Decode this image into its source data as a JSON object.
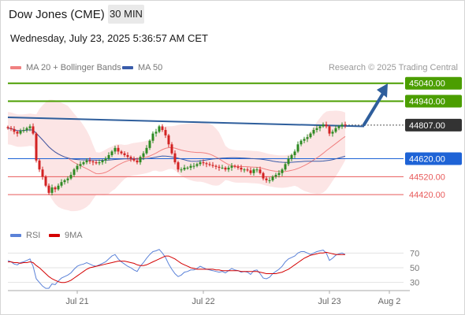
{
  "header": {
    "title": "Dow Jones (CME)",
    "interval": "30 MIN"
  },
  "datetime": "Wednesday, July 23, 2025 5:36:57 AM CET",
  "legend": {
    "ma20": "MA 20 + Bollinger Bands",
    "ma50": "MA 50",
    "credit": "Research © 2025 Trading Central"
  },
  "rsi_legend": {
    "rsi": "RSI",
    "ma9": "9MA"
  },
  "colors": {
    "resistance": "#4b9e00",
    "pivot": "#1e63d6",
    "support": "#e85a5a",
    "last": "#333333",
    "trendline": "#2e5e9c",
    "bollinger": "#fce0e0",
    "ma20": "#f08080",
    "ma50": "#3a5caa",
    "candle_up": "#2e8a22",
    "candle_down": "#d22222",
    "rsi": "#5b82d8",
    "rsi_ma": "#d40000"
  },
  "chart_data": [
    {
      "type": "candlestick",
      "title": "Dow Jones (CME)",
      "ylim": [
        44320,
        45100
      ],
      "x_labels": [
        {
          "label": "Jul 21",
          "bar": 22
        },
        {
          "label": "Jul 22",
          "bar": 62
        },
        {
          "label": "Jul 23",
          "bar": 102
        },
        {
          "label": "Aug 2",
          "bar": 121
        }
      ],
      "levels": [
        {
          "label": "45040.00",
          "value": 45040,
          "kind": "resistance"
        },
        {
          "label": "44940.00",
          "value": 44940,
          "kind": "resistance"
        },
        {
          "label": "44807.00",
          "value": 44807,
          "kind": "last"
        },
        {
          "label": "44620.00",
          "value": 44620,
          "kind": "pivot"
        },
        {
          "label": "44520.00",
          "value": 44520,
          "kind": "support"
        },
        {
          "label": "44420.00",
          "value": 44420,
          "kind": "support"
        }
      ],
      "trendline": {
        "from": {
          "bar": 0,
          "value": 44850
        },
        "to": {
          "bar": 113,
          "value": 44800
        }
      },
      "projection": {
        "from": {
          "bar": 113,
          "value": 44810
        },
        "to": {
          "bar": 120,
          "value": 45030
        }
      },
      "close": [
        44790,
        44785,
        44770,
        44760,
        44775,
        44780,
        44790,
        44800,
        44760,
        44610,
        44560,
        44520,
        44470,
        44430,
        44460,
        44450,
        44470,
        44490,
        44500,
        44510,
        44530,
        44560,
        44580,
        44590,
        44600,
        44610,
        44605,
        44600,
        44595,
        44600,
        44610,
        44620,
        44640,
        44660,
        44680,
        44660,
        44650,
        44640,
        44630,
        44620,
        44610,
        44600,
        44630,
        44650,
        44680,
        44720,
        44760,
        44770,
        44800,
        44780,
        44750,
        44700,
        44650,
        44600,
        44560,
        44560,
        44570,
        44570,
        44580,
        44580,
        44590,
        44600,
        44595,
        44590,
        44585,
        44580,
        44575,
        44570,
        44570,
        44560,
        44570,
        44580,
        44575,
        44570,
        44560,
        44560,
        44555,
        44540,
        44560,
        44560,
        44540,
        44510,
        44500,
        44500,
        44520,
        44530,
        44540,
        44560,
        44590,
        44620,
        44640,
        44660,
        44700,
        44720,
        44730,
        44740,
        44760,
        44780,
        44790,
        44800,
        44810,
        44800,
        44760,
        44770,
        44790,
        44800,
        44810,
        44807
      ]
    },
    {
      "type": "line",
      "title": "RSI",
      "ylim": [
        20,
        80
      ],
      "yticks": [
        30,
        50,
        70
      ],
      "series": [
        {
          "name": "RSI",
          "values": [
            60,
            58,
            55,
            54,
            57,
            58,
            60,
            62,
            52,
            35,
            30,
            25,
            22,
            22,
            28,
            27,
            32,
            36,
            38,
            40,
            43,
            48,
            52,
            54,
            55,
            57,
            55,
            53,
            52,
            54,
            56,
            58,
            62,
            66,
            68,
            62,
            58,
            55,
            52,
            50,
            47,
            45,
            52,
            57,
            63,
            68,
            72,
            73,
            75,
            70,
            64,
            55,
            48,
            42,
            38,
            40,
            44,
            45,
            47,
            47,
            49,
            52,
            50,
            48,
            47,
            46,
            45,
            44,
            45,
            43,
            46,
            49,
            47,
            46,
            44,
            45,
            44,
            41,
            46,
            47,
            42,
            36,
            35,
            37,
            42,
            45,
            48,
            52,
            58,
            62,
            64,
            66,
            70,
            72,
            72,
            70,
            68,
            70,
            72,
            73,
            74,
            70,
            60,
            63,
            67,
            69,
            70,
            68
          ]
        },
        {
          "name": "9MA",
          "values": [
            58,
            58,
            57,
            57,
            56,
            57,
            57,
            58,
            57,
            53,
            50,
            46,
            42,
            38,
            35,
            33,
            31,
            30,
            30,
            31,
            33,
            36,
            39,
            42,
            45,
            48,
            50,
            51,
            52,
            53,
            54,
            55,
            56,
            57,
            58,
            59,
            59,
            59,
            58,
            57,
            56,
            54,
            53,
            53,
            54,
            56,
            58,
            60,
            62,
            64,
            66,
            66,
            64,
            62,
            59,
            56,
            54,
            52,
            50,
            49,
            48,
            48,
            48,
            48,
            48,
            48,
            47,
            47,
            46,
            46,
            46,
            46,
            46,
            46,
            45,
            45,
            45,
            45,
            45,
            45,
            44,
            43,
            42,
            42,
            42,
            42,
            43,
            44,
            46,
            48,
            51,
            54,
            57,
            60,
            63,
            65,
            67,
            68,
            69,
            70,
            70,
            71,
            70,
            69,
            68,
            68,
            68,
            68
          ]
        }
      ]
    }
  ]
}
